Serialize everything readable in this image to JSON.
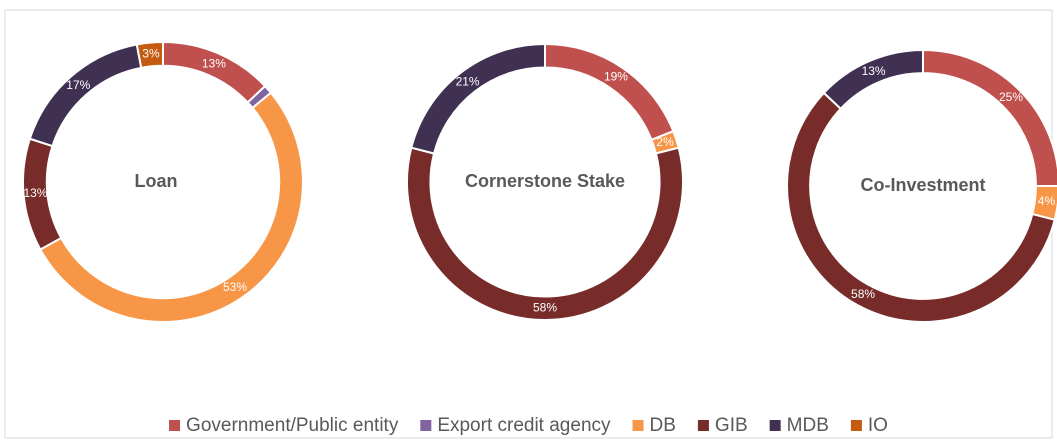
{
  "legend": {
    "labels": [
      "Government/Public entity",
      "Export credit agency",
      "DB",
      "GIB",
      "MDB",
      "IO"
    ],
    "colors": [
      "#c0504d",
      "#8064a2",
      "#f79646",
      "#772c2a",
      "#403152",
      "#c55a11"
    ]
  },
  "chart_data": [
    {
      "type": "pie",
      "title": "Loan",
      "values": [
        13,
        1,
        53,
        13,
        17,
        3
      ],
      "value_labels": [
        "13%",
        null,
        "53%",
        "13%",
        "17%",
        "3%"
      ]
    },
    {
      "type": "pie",
      "title": "Cornerstone Stake",
      "values": [
        19,
        null,
        2,
        58,
        21,
        null
      ],
      "value_labels": [
        "19%",
        null,
        "2%",
        "58%",
        "21%",
        null
      ]
    },
    {
      "type": "pie",
      "title": "Co-Investment",
      "values": [
        25,
        null,
        4,
        58,
        13,
        null
      ],
      "value_labels": [
        "25%",
        null,
        "4%",
        "58%",
        "13%",
        null
      ]
    }
  ]
}
